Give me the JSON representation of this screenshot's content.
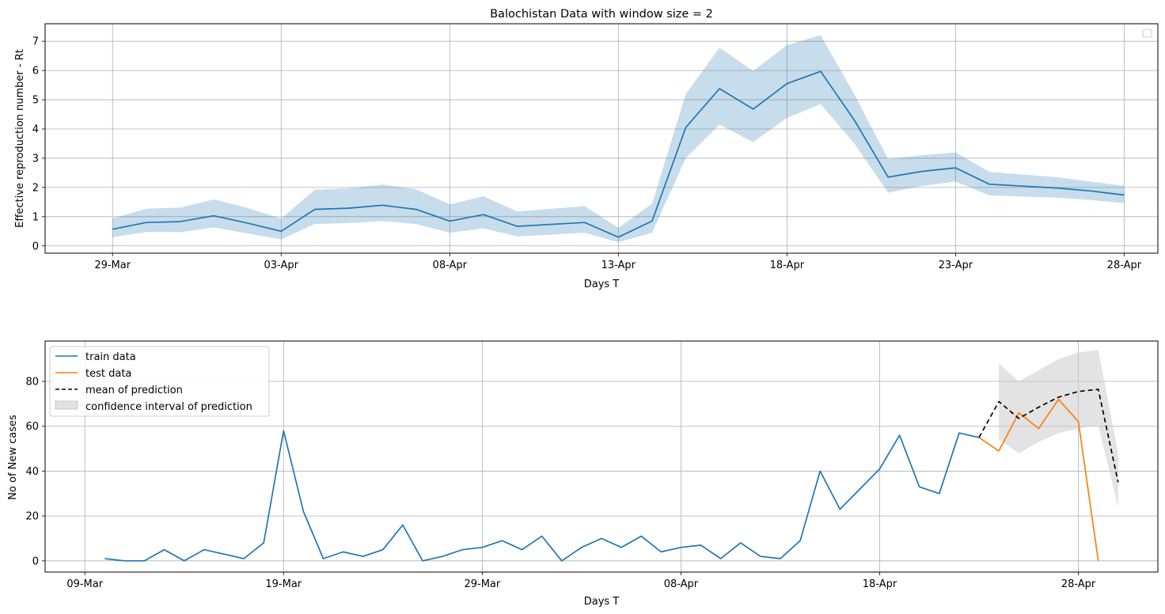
{
  "chart_data": [
    {
      "type": "line",
      "title": "Balochistan Data with window size = 2",
      "xlabel": "Days T",
      "ylabel": "Effective reproduction number - Rt",
      "x_tick_labels": [
        "29-Mar",
        "03-Apr",
        "08-Apr",
        "13-Apr",
        "18-Apr",
        "23-Apr",
        "28-Apr"
      ],
      "x_ticks": [
        "2020-03-29",
        "2020-04-03",
        "2020-04-08",
        "2020-04-13",
        "2020-04-18",
        "2020-04-23",
        "2020-04-28"
      ],
      "y_ticks": [
        0,
        1,
        2,
        3,
        4,
        5,
        6,
        7
      ],
      "xlim": [
        "2020-03-27",
        "2020-04-29"
      ],
      "ylim": [
        -0.25,
        7.6
      ],
      "grid": true,
      "legend": "top-right (empty)",
      "colors": {
        "line": "#1f77b4",
        "band": "#1f77b4"
      },
      "series": [
        {
          "x": [
            "2020-03-29",
            "2020-03-30",
            "2020-03-31",
            "2020-04-01",
            "2020-04-02",
            "2020-04-03",
            "2020-04-04",
            "2020-04-05",
            "2020-04-06",
            "2020-04-07",
            "2020-04-08",
            "2020-04-09",
            "2020-04-10",
            "2020-04-12",
            "2020-04-13",
            "2020-04-14",
            "2020-04-15",
            "2020-04-16",
            "2020-04-17",
            "2020-04-18",
            "2020-04-19",
            "2020-04-20",
            "2020-04-21",
            "2020-04-22",
            "2020-04-23",
            "2020-04-24",
            "2020-04-26",
            "2020-04-27",
            "2020-04-28"
          ],
          "y": [
            0.57,
            0.8,
            0.83,
            1.03,
            0.78,
            0.5,
            1.25,
            1.29,
            1.39,
            1.25,
            0.85,
            1.07,
            0.67,
            0.8,
            0.3,
            0.85,
            4.05,
            5.38,
            4.68,
            5.55,
            5.97,
            4.3,
            2.35,
            2.55,
            2.67,
            2.11,
            1.98,
            1.88,
            1.74
          ],
          "lower": [
            0.3,
            0.47,
            0.47,
            0.63,
            0.43,
            0.22,
            0.75,
            0.78,
            0.85,
            0.75,
            0.45,
            0.6,
            0.32,
            0.45,
            0.12,
            0.45,
            3.0,
            4.15,
            3.55,
            4.38,
            4.85,
            3.5,
            1.82,
            2.05,
            2.2,
            1.73,
            1.65,
            1.57,
            1.46
          ],
          "upper": [
            0.93,
            1.27,
            1.31,
            1.59,
            1.3,
            0.93,
            1.92,
            1.97,
            2.1,
            1.94,
            1.42,
            1.7,
            1.18,
            1.36,
            0.62,
            1.44,
            5.2,
            6.78,
            5.98,
            6.87,
            7.21,
            5.18,
            2.97,
            3.1,
            3.2,
            2.53,
            2.35,
            2.2,
            2.06
          ]
        }
      ]
    },
    {
      "type": "line",
      "xlabel": "Days T",
      "ylabel": "No of New cases",
      "x_tick_labels": [
        "09-Mar",
        "19-Mar",
        "29-Mar",
        "08-Apr",
        "18-Apr",
        "28-Apr"
      ],
      "x_ticks": [
        "2020-03-09",
        "2020-03-19",
        "2020-03-29",
        "2020-04-08",
        "2020-04-18",
        "2020-04-28"
      ],
      "y_ticks": [
        0,
        20,
        40,
        60,
        80
      ],
      "xlim": [
        "2020-03-07",
        "2020-05-02"
      ],
      "ylim": [
        -5,
        98
      ],
      "grid": true,
      "legend": "top-left",
      "series": [
        {
          "name": "train data",
          "color": "#1f77b4",
          "x": [
            "2020-03-10",
            "2020-03-11",
            "2020-03-12",
            "2020-03-13",
            "2020-03-14",
            "2020-03-15",
            "2020-03-16",
            "2020-03-17",
            "2020-03-18",
            "2020-03-19",
            "2020-03-20",
            "2020-03-21",
            "2020-03-22",
            "2020-03-23",
            "2020-03-24",
            "2020-03-25",
            "2020-03-26",
            "2020-03-27",
            "2020-03-28",
            "2020-03-29",
            "2020-03-30",
            "2020-03-31",
            "2020-04-01",
            "2020-04-02",
            "2020-04-03",
            "2020-04-04",
            "2020-04-05",
            "2020-04-06",
            "2020-04-07",
            "2020-04-08",
            "2020-04-09",
            "2020-04-10",
            "2020-04-11",
            "2020-04-12",
            "2020-04-13",
            "2020-04-14",
            "2020-04-15",
            "2020-04-16",
            "2020-04-17",
            "2020-04-18",
            "2020-04-19",
            "2020-04-20",
            "2020-04-21",
            "2020-04-22",
            "2020-04-23"
          ],
          "y": [
            1,
            0,
            0,
            5,
            0,
            5,
            3,
            1,
            8,
            58,
            22,
            1,
            4,
            2,
            5,
            16,
            0,
            2,
            5,
            6,
            9,
            5,
            11,
            0,
            6,
            10,
            6,
            11,
            4,
            6,
            7,
            1,
            8,
            2,
            1,
            9,
            40,
            23,
            32,
            41,
            56,
            33,
            30,
            57,
            55
          ]
        },
        {
          "name": "test data",
          "color": "#ff7f0e",
          "x": [
            "2020-04-23",
            "2020-04-24",
            "2020-04-25",
            "2020-04-26",
            "2020-04-27",
            "2020-04-28",
            "2020-04-29"
          ],
          "y": [
            55,
            49,
            66,
            59,
            72,
            62,
            0
          ]
        },
        {
          "name": "mean of prediction",
          "color": "#000000",
          "dashed": true,
          "x": [
            "2020-04-23",
            "2020-04-24",
            "2020-04-25",
            "2020-04-26",
            "2020-04-27",
            "2020-04-28",
            "2020-04-29",
            "2020-04-30"
          ],
          "y": [
            55,
            71,
            63.5,
            68.5,
            73,
            75.5,
            76.5,
            35
          ]
        },
        {
          "name": "confidence interval of prediction",
          "color": "#c8c8c8",
          "band": true,
          "x": [
            "2020-04-24",
            "2020-04-25",
            "2020-04-26",
            "2020-04-27",
            "2020-04-28",
            "2020-04-29",
            "2020-04-30"
          ],
          "lower": [
            54,
            48,
            53,
            57,
            59,
            60.5,
            24
          ],
          "upper": [
            88,
            80,
            85,
            90,
            93,
            94,
            48
          ]
        }
      ]
    }
  ]
}
